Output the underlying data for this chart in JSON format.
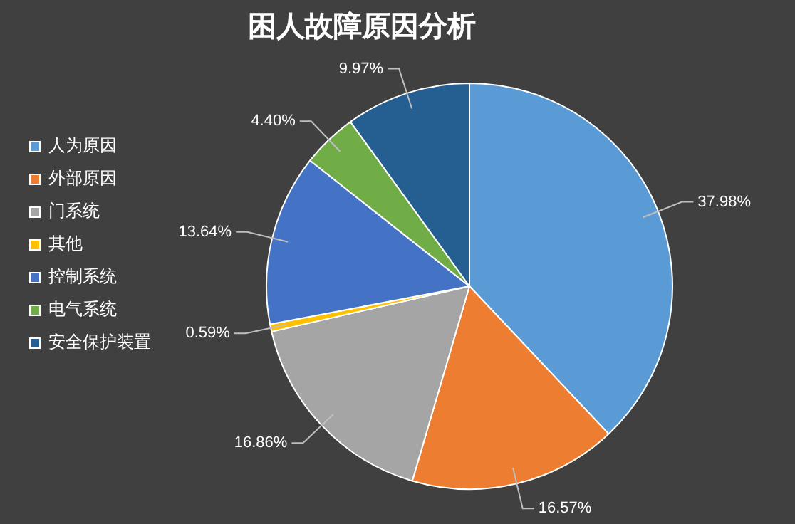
{
  "chart_data": {
    "type": "pie",
    "title": "困人故障原因分析",
    "categories": [
      "人为原因",
      "外部原因",
      "门系统",
      "其他",
      "控制系统",
      "电气系统",
      "安全保护装置"
    ],
    "values": [
      37.98,
      16.57,
      16.86,
      0.59,
      13.64,
      4.4,
      9.97
    ],
    "value_labels": [
      "37.98%",
      "16.57%",
      "16.86%",
      "0.59%",
      "13.64%",
      "4.40%",
      "9.97%"
    ],
    "colors": [
      "#5b9bd5",
      "#ed7d31",
      "#a5a5a5",
      "#ffc000",
      "#4472c4",
      "#70ad47",
      "#255e91"
    ],
    "legend": "left"
  }
}
